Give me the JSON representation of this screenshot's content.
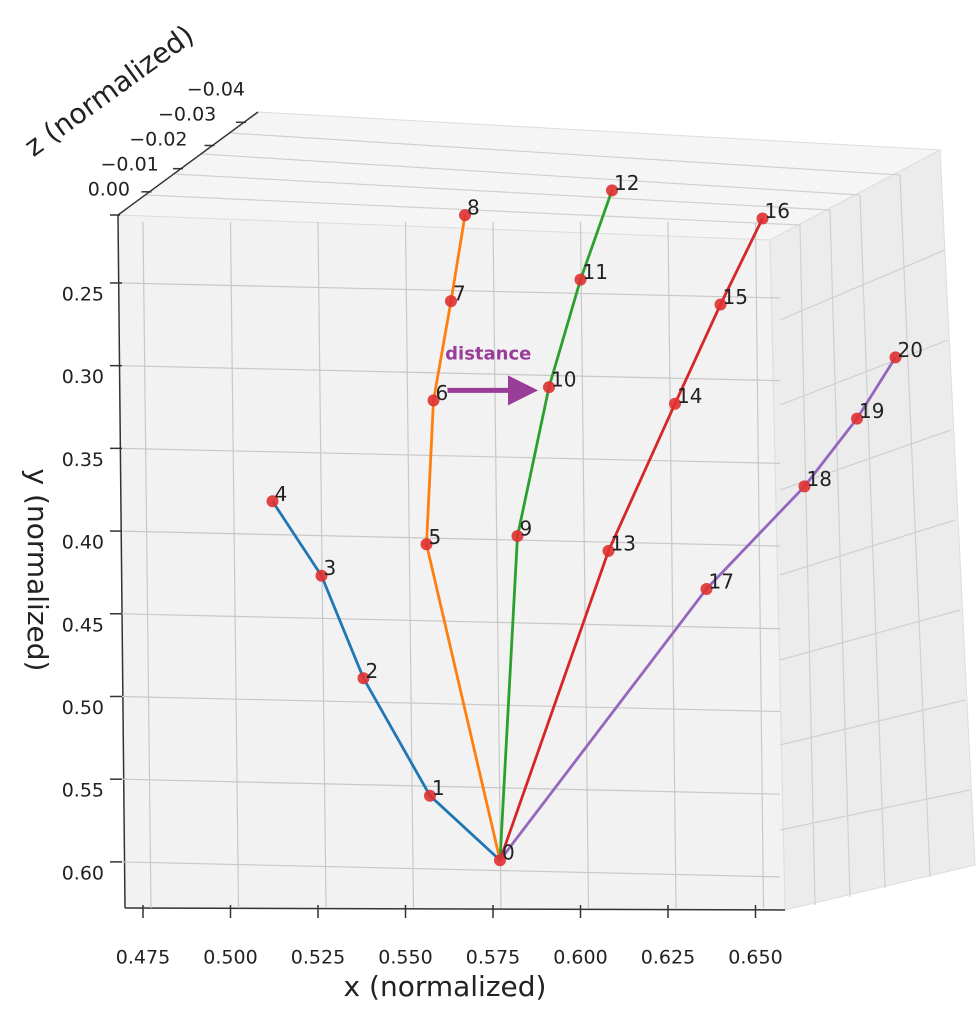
{
  "chart_data": {
    "type": "skeleton3d",
    "xlabel": "x (normalized)",
    "ylabel": "y (normalized)",
    "zlabel": "z (normalized)",
    "labels": [
      "0",
      "1",
      "2",
      "3",
      "4",
      "5",
      "6",
      "7",
      "8",
      "9",
      "10",
      "11",
      "12",
      "13",
      "14",
      "15",
      "16",
      "17",
      "18",
      "19",
      "20"
    ],
    "x": [
      0.577,
      0.557,
      0.538,
      0.526,
      0.512,
      0.556,
      0.558,
      0.563,
      0.567,
      0.582,
      0.591,
      0.6,
      0.609,
      0.608,
      0.627,
      0.64,
      0.652,
      0.636,
      0.664,
      0.679,
      0.69
    ],
    "y": [
      0.599,
      0.56,
      0.489,
      0.427,
      0.382,
      0.408,
      0.321,
      0.261,
      0.209,
      0.403,
      0.313,
      0.248,
      0.194,
      0.412,
      0.323,
      0.263,
      0.211,
      0.435,
      0.373,
      0.332,
      0.295
    ],
    "point_color": "#e03030",
    "series": [
      {
        "color": "#1f77b4",
        "points": [
          0,
          1,
          2,
          3,
          4
        ]
      },
      {
        "color": "#ff7f0e",
        "points": [
          0,
          5,
          6,
          7,
          8
        ]
      },
      {
        "color": "#2ca02c",
        "points": [
          0,
          9,
          10,
          11,
          12
        ]
      },
      {
        "color": "#d62728",
        "points": [
          0,
          13,
          14,
          15,
          16
        ]
      },
      {
        "color": "#9467bd",
        "points": [
          0,
          17,
          18,
          19,
          20
        ]
      }
    ],
    "annotation": {
      "text": "distance",
      "from": 6,
      "to": 10,
      "color": "#993d99"
    },
    "xlim": [
      0.47,
      0.66
    ],
    "ylim": [
      0.21,
      0.63
    ],
    "zlim": [
      0,
      -0.04
    ],
    "xticks": [
      0.475,
      {
        "value": 0.5,
        "label": "0.500"
      },
      0.525,
      {
        "value": 0.55,
        "label": "0.550"
      },
      0.575,
      {
        "value": 0.6,
        "label": "0.600"
      },
      0.625,
      {
        "value": 0.65,
        "label": "0.650"
      }
    ],
    "yticks": [
      0.25,
      {
        "value": 0.3,
        "label": "0.30"
      },
      0.35,
      {
        "value": 0.4,
        "label": "0.40"
      },
      0.45,
      {
        "value": 0.5,
        "label": "0.50"
      },
      0.55,
      {
        "value": 0.6,
        "label": "0.60"
      }
    ],
    "zticks": [
      {
        "value": 0,
        "label": "0.00"
      },
      {
        "value": -0.01,
        "label": "−0.01"
      },
      {
        "value": -0.02,
        "label": "−0.02"
      },
      {
        "value": -0.03,
        "label": "−0.03"
      },
      {
        "value": -0.04,
        "label": "−0.04"
      }
    ],
    "grid": true
  }
}
